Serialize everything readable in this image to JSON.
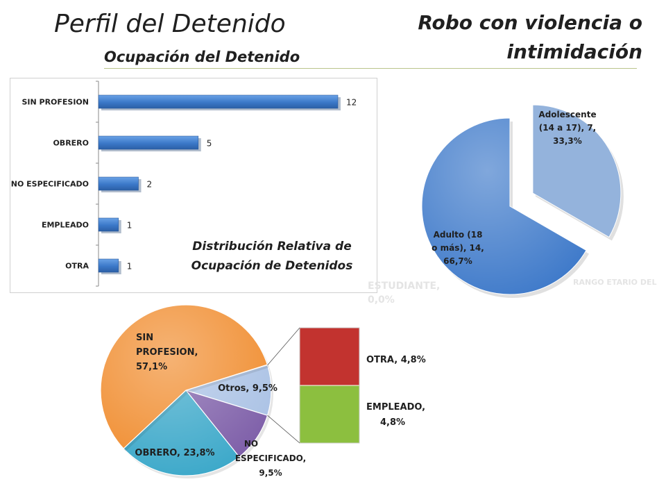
{
  "header": {
    "title": "Perfil del Detenido",
    "subtitle": "Ocupación del Detenido",
    "crime_title": "Robo con violencia o intimidación"
  },
  "colors": {
    "bar": "#3f7fd0",
    "age_adolescente": "#94b3dc",
    "age_adulto": "#3c78c9",
    "sin_profesion": "#f08a2a",
    "obrero": "#37a6c8",
    "no_especificado": "#7a5aa6",
    "otros": "#a8c0e4",
    "otra": "#c2332f",
    "empleado": "#8cbf3f"
  },
  "faint_labels": {
    "estudiante": "ESTUDIANTE, 0,0%",
    "rango_etario": "RANGO ETARIO DEL"
  },
  "chart_data": [
    {
      "type": "bar",
      "orientation": "horizontal",
      "title": "Distribución Relativa de Ocupación de Detenidos",
      "categories": [
        "SIN PROFESION",
        "OBRERO",
        "NO ESPECIFICADO",
        "EMPLEADO",
        "OTRA"
      ],
      "values": [
        12,
        5,
        2,
        1,
        1
      ],
      "data_labels": [
        "12",
        "5",
        "2",
        "1",
        "1"
      ],
      "xlim": [
        0,
        14
      ],
      "grid": false
    },
    {
      "type": "pie",
      "slices": [
        {
          "label": "Adolescente (14 a 17), 7, 33,3%",
          "value": 7,
          "percent": 33.3
        },
        {
          "label": "Adulto (18 o más), 14, 66,7%",
          "value": 14,
          "percent": 66.7
        }
      ]
    },
    {
      "type": "pie",
      "subtype": "bar-of-pie",
      "slices": [
        {
          "label": "SIN PROFESION, 57,1%",
          "percent": 57.1
        },
        {
          "label": "OBRERO, 23,8%",
          "percent": 23.8
        },
        {
          "label": "NO ESPECIFICADO, 9,5%",
          "percent": 9.5
        },
        {
          "label": "Otros, 9,5%",
          "percent": 9.5
        }
      ],
      "secondary": [
        {
          "label": "OTRA, 4,8%",
          "percent": 4.8
        },
        {
          "label": "EMPLEADO, 4,8%",
          "percent": 4.8
        }
      ]
    }
  ]
}
